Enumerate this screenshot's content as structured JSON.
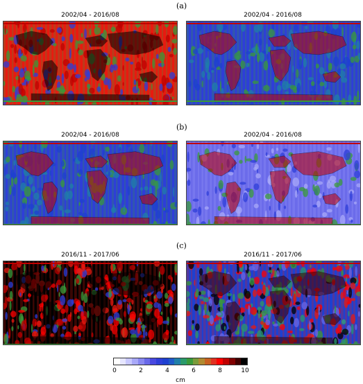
{
  "panels": [
    {
      "label": "(a)",
      "titles": [
        "2002/04 - 2016/08",
        "2002/04 - 2016/08"
      ],
      "styles": [
        "red",
        "blue"
      ]
    },
    {
      "label": "(b)",
      "titles": [
        "2002/04 - 2016/08",
        "2002/04 - 2016/08"
      ],
      "styles": [
        "blue",
        "lightblue"
      ]
    },
    {
      "label": "(c)",
      "titles": [
        "2016/11 - 2017/06",
        "2016/11 - 2017/06"
      ],
      "styles": [
        "black",
        "noisy"
      ]
    }
  ],
  "colorbar": {
    "ticks": [
      "0",
      "2",
      "4",
      "6",
      "8",
      "10"
    ],
    "unit": "cm",
    "range": [
      0,
      10
    ],
    "colors": [
      "#ffffff",
      "#e6e6ff",
      "#c8c8ff",
      "#a8a8f8",
      "#8888f0",
      "#6868e8",
      "#4848e0",
      "#2e3ed8",
      "#1e40d0",
      "#1e5ac8",
      "#1f7fa8",
      "#2a9a6a",
      "#3a9a3a",
      "#7a9a3a",
      "#b08a30",
      "#c86020",
      "#e03020",
      "#ff0000",
      "#c00000",
      "#800000",
      "#400000",
      "#000000"
    ]
  }
}
